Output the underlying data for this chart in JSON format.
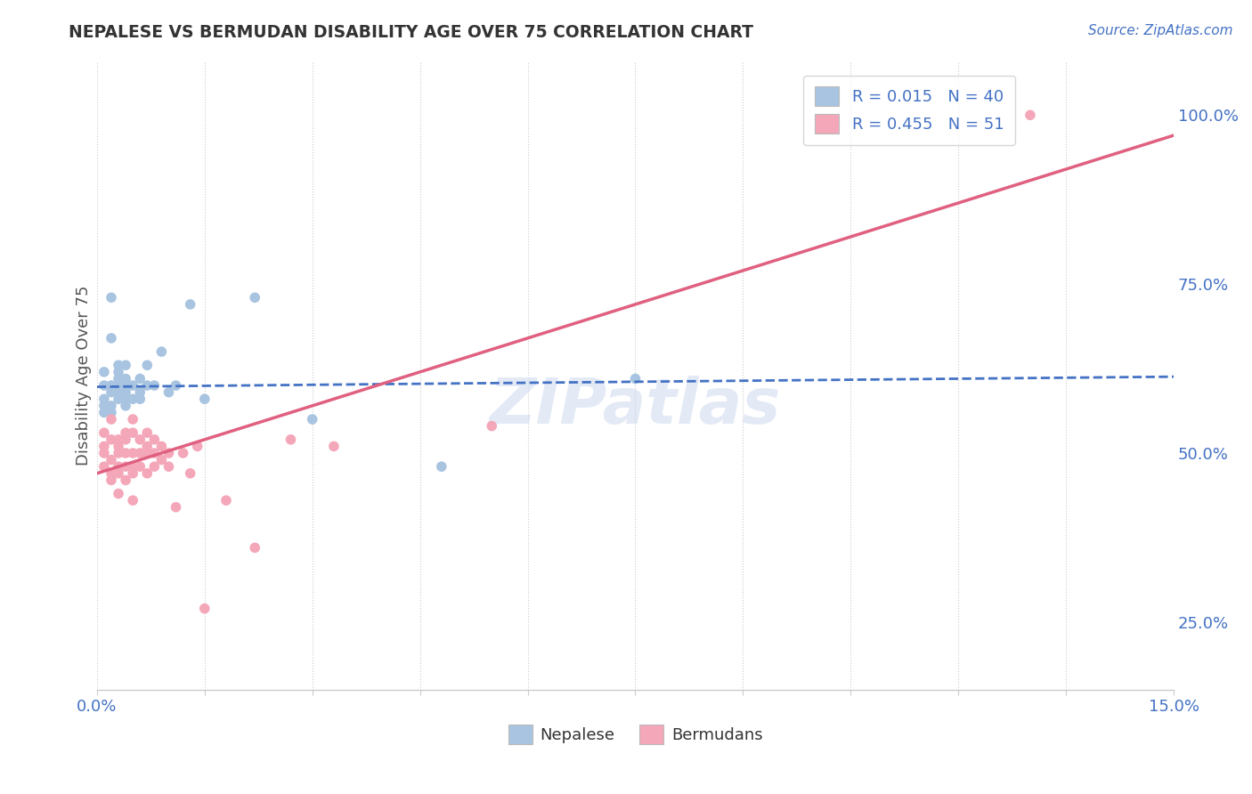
{
  "title": "NEPALESE VS BERMUDAN DISABILITY AGE OVER 75 CORRELATION CHART",
  "source": "Source: ZipAtlas.com",
  "ylabel": "Disability Age Over 75",
  "xlim": [
    0.0,
    0.15
  ],
  "ylim": [
    0.15,
    1.08
  ],
  "xticks": [
    0.0,
    0.015,
    0.03,
    0.045,
    0.06,
    0.075,
    0.09,
    0.105,
    0.12,
    0.135,
    0.15
  ],
  "xtick_labels": [
    "0.0%",
    "",
    "",
    "",
    "",
    "",
    "",
    "",
    "",
    "",
    "15.0%"
  ],
  "yticks_right": [
    0.25,
    0.5,
    0.75,
    1.0
  ],
  "ytick_labels_right": [
    "25.0%",
    "50.0%",
    "75.0%",
    "100.0%"
  ],
  "nepalese_R": 0.015,
  "nepalese_N": 40,
  "bermudan_R": 0.455,
  "bermudan_N": 51,
  "nepalese_color": "#a8c4e0",
  "bermudan_color": "#f4a7b9",
  "nepalese_line_color": "#4472c4",
  "bermudan_line_color": "#e06080",
  "watermark": "ZIPatlas",
  "background_color": "#ffffff",
  "nep_line_x0": 0.0,
  "nep_line_y0": 0.598,
  "nep_line_x1": 0.15,
  "nep_line_y1": 0.613,
  "berm_line_x0": 0.0,
  "berm_line_y0": 0.47,
  "berm_line_x1": 0.15,
  "berm_line_y1": 0.97,
  "nepalese_x": [
    0.001,
    0.001,
    0.001,
    0.001,
    0.001,
    0.002,
    0.002,
    0.002,
    0.002,
    0.002,
    0.002,
    0.003,
    0.003,
    0.003,
    0.003,
    0.003,
    0.003,
    0.004,
    0.004,
    0.004,
    0.004,
    0.004,
    0.004,
    0.005,
    0.005,
    0.006,
    0.006,
    0.006,
    0.007,
    0.007,
    0.008,
    0.009,
    0.01,
    0.011,
    0.013,
    0.015,
    0.022,
    0.03,
    0.048,
    0.075
  ],
  "nepalese_y": [
    0.58,
    0.6,
    0.56,
    0.62,
    0.57,
    0.67,
    0.73,
    0.6,
    0.59,
    0.57,
    0.56,
    0.61,
    0.63,
    0.6,
    0.59,
    0.62,
    0.58,
    0.63,
    0.61,
    0.59,
    0.6,
    0.58,
    0.57,
    0.6,
    0.58,
    0.61,
    0.59,
    0.58,
    0.63,
    0.6,
    0.6,
    0.65,
    0.59,
    0.6,
    0.72,
    0.58,
    0.73,
    0.55,
    0.48,
    0.61
  ],
  "bermudan_x": [
    0.001,
    0.001,
    0.001,
    0.001,
    0.002,
    0.002,
    0.002,
    0.002,
    0.002,
    0.003,
    0.003,
    0.003,
    0.003,
    0.003,
    0.003,
    0.004,
    0.004,
    0.004,
    0.004,
    0.004,
    0.005,
    0.005,
    0.005,
    0.005,
    0.005,
    0.005,
    0.006,
    0.006,
    0.006,
    0.007,
    0.007,
    0.007,
    0.007,
    0.008,
    0.008,
    0.008,
    0.009,
    0.009,
    0.01,
    0.01,
    0.011,
    0.012,
    0.013,
    0.014,
    0.015,
    0.018,
    0.022,
    0.027,
    0.033,
    0.055,
    0.13
  ],
  "bermudan_y": [
    0.5,
    0.48,
    0.53,
    0.51,
    0.47,
    0.52,
    0.49,
    0.46,
    0.55,
    0.5,
    0.48,
    0.52,
    0.47,
    0.51,
    0.44,
    0.5,
    0.52,
    0.48,
    0.53,
    0.46,
    0.5,
    0.48,
    0.53,
    0.43,
    0.47,
    0.55,
    0.5,
    0.48,
    0.52,
    0.5,
    0.47,
    0.53,
    0.51,
    0.5,
    0.48,
    0.52,
    0.49,
    0.51,
    0.5,
    0.48,
    0.42,
    0.5,
    0.47,
    0.51,
    0.27,
    0.43,
    0.36,
    0.52,
    0.51,
    0.54,
    1.0
  ]
}
